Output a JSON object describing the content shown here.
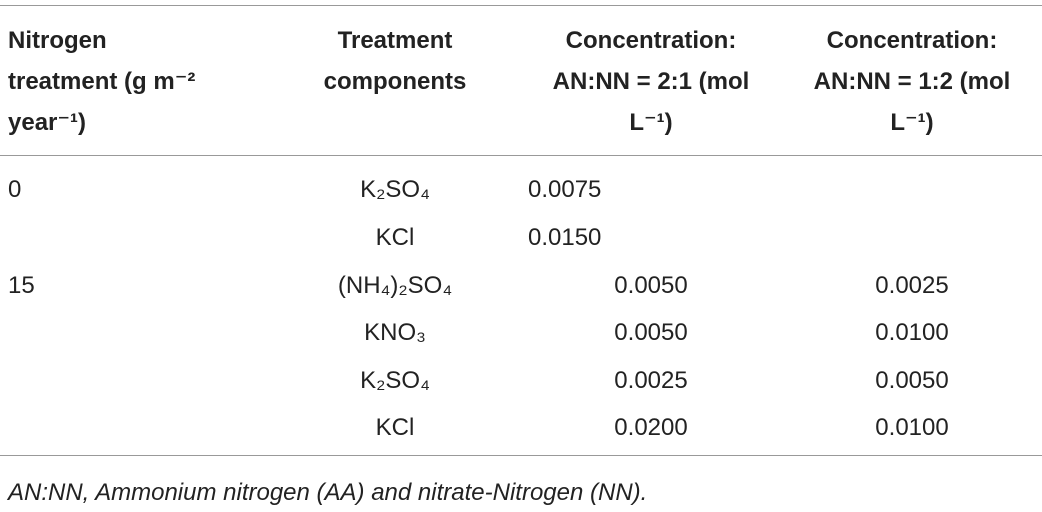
{
  "table": {
    "header": [
      [
        "Nitrogen",
        "treatment (g m⁻²",
        "year⁻¹)"
      ],
      [
        "Treatment",
        "components"
      ],
      [
        "Concentration:",
        "AN:NN = 2:1 (mol",
        "L⁻¹)"
      ],
      [
        "Concentration:",
        "AN:NN = 1:2 (mol",
        "L⁻¹)"
      ]
    ],
    "rows": [
      [
        "0",
        "K₂SO₄",
        "0.0075",
        null
      ],
      [
        null,
        "KCl",
        "0.0150",
        null
      ],
      [
        "15",
        "(NH₄)₂SO₄",
        "0.0050",
        "0.0025"
      ],
      [
        null,
        "KNO₃",
        "0.0050",
        "0.0100"
      ],
      [
        null,
        "K₂SO₄",
        "0.0025",
        "0.0050"
      ],
      [
        null,
        "KCl",
        "0.0200",
        "0.0100"
      ]
    ]
  },
  "footnote": "AN:NN, Ammonium nitrogen (AA) and nitrate-Nitrogen (NN)."
}
